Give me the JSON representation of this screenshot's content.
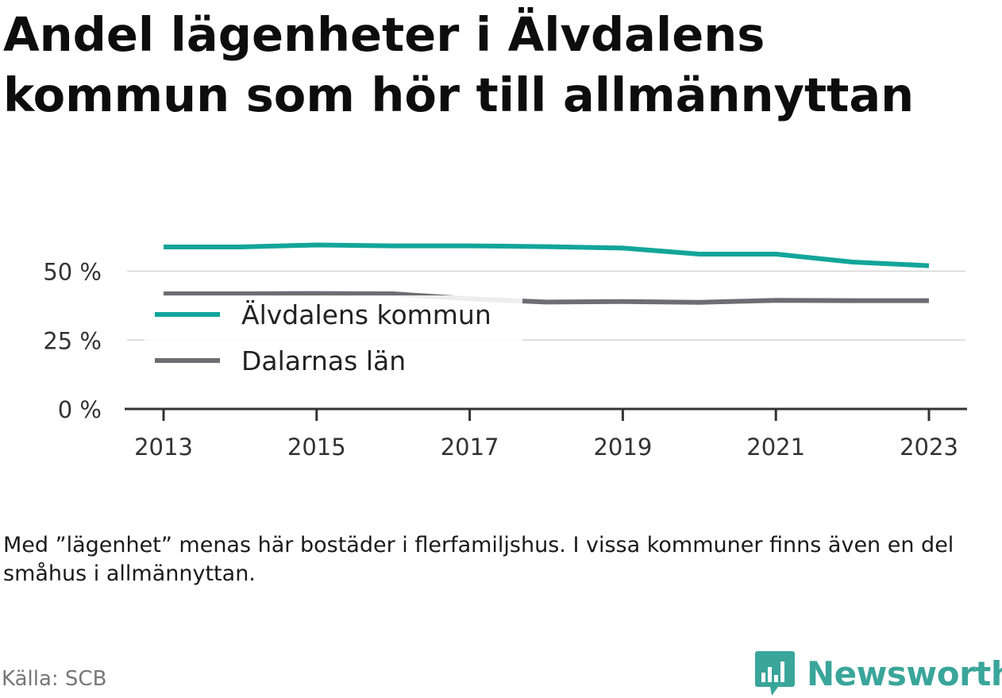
{
  "title": "Andel lägenheter i Älvdalens kommun som hör till allmännyttan",
  "note": "Med ”lägenhet” menas här bostäder i flerfamiljshus. I vissa kommuner finns även en del småhus i allmännyttan.",
  "source": "Källa: SCB",
  "brand": {
    "name": "Newsworthy",
    "icon": "newsworthy-logo-icon"
  },
  "colors": {
    "series1": "#13a59a",
    "series2": "#6e6d73",
    "grid": "#dcdcdc",
    "axis": "#333333",
    "brand": "#3aa59a"
  },
  "chart_data": {
    "type": "line",
    "x": [
      2013,
      2014,
      2015,
      2016,
      2017,
      2018,
      2019,
      2020,
      2021,
      2022,
      2023
    ],
    "xticks": [
      "2013",
      "2015",
      "2017",
      "2019",
      "2021",
      "2023"
    ],
    "xtick_values": [
      2013,
      2015,
      2017,
      2019,
      2021,
      2023
    ],
    "yticks": [
      "0 %",
      "25 %",
      "50 %"
    ],
    "ytick_values": [
      0,
      25,
      50
    ],
    "ylim": [
      0,
      62
    ],
    "grid": true,
    "legend_position": "inside-left",
    "series": [
      {
        "name": "Älvdalens kommun",
        "color": "#13a59a",
        "values": [
          58.8,
          58.8,
          59.5,
          59.2,
          59.2,
          58.9,
          58.4,
          56.2,
          56.2,
          53.3,
          52.0
        ]
      },
      {
        "name": "Dalarnas län",
        "color": "#6e6d73",
        "values": [
          41.8,
          41.8,
          41.9,
          41.8,
          40.0,
          38.8,
          39.0,
          38.7,
          39.4,
          39.3,
          39.3
        ]
      }
    ]
  }
}
